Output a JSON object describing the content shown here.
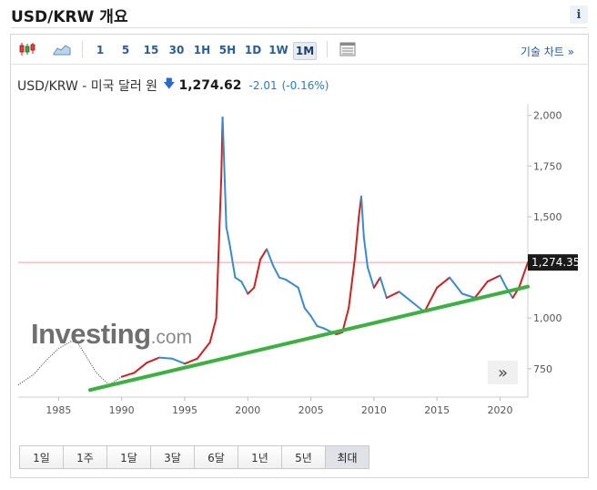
{
  "header": {
    "title": "USD/KRW 개요",
    "info_icon": "i"
  },
  "toolbar": {
    "timeframes": [
      "1",
      "5",
      "15",
      "30",
      "1H",
      "5H",
      "1D",
      "1W",
      "1M"
    ],
    "active_timeframe": "1M",
    "tech_chart_label": "기술 차트 »"
  },
  "quote": {
    "name": "USD/KRW - 미국 달러 원",
    "price": "1,274.62",
    "change": "-2.01",
    "change_pct": "(-0.16%)",
    "direction": "down"
  },
  "watermark": {
    "main": "Investing",
    "suffix": ".com"
  },
  "scroll_label": "»",
  "range_buttons": [
    "1일",
    "1주",
    "1달",
    "3달",
    "6달",
    "1년",
    "5년",
    "최대"
  ],
  "active_range": "최대",
  "colors": {
    "up": "#d02020",
    "down": "#3a8ad0",
    "trend": "#3cb040",
    "current_line": "#f0a0a0",
    "price_tag": "#1a1a1a"
  },
  "chart_data": {
    "type": "line",
    "title": "",
    "x_ticks": [
      1985,
      1990,
      1995,
      2000,
      2005,
      2010,
      2015,
      2020
    ],
    "y_ticks": [
      "2,000",
      "1,750",
      "1,500",
      "1,000",
      "750"
    ],
    "y_tick_values": [
      2000,
      1750,
      1500,
      1000,
      750
    ],
    "ylim": [
      610,
      2030
    ],
    "xlim": [
      1981.8,
      2022.2
    ],
    "current_value_label": "1,274.35",
    "current_value": 1274.35,
    "series": [
      {
        "style": "dotted",
        "x": [
          1981.8,
          1983,
          1984,
          1985,
          1986,
          1986.5,
          1987,
          1988,
          1989,
          1990
        ],
        "y": [
          670,
          720,
          790,
          850,
          885,
          880,
          830,
          730,
          670,
          710
        ]
      },
      {
        "style": "price",
        "x": [
          1990,
          1991,
          1992,
          1993,
          1994,
          1995,
          1996,
          1997,
          1997.5,
          1997.9,
          1998.0,
          1998.3,
          1998.6,
          1999,
          1999.5,
          2000,
          2000.5,
          2001,
          2001.5,
          2002,
          2002.5,
          2003,
          2004,
          2004.5,
          2005,
          2005.5,
          2006,
          2007,
          2007.5,
          2008,
          2008.5,
          2008.8,
          2009.0,
          2009.2,
          2009.5,
          2010,
          2010.5,
          2011,
          2012,
          2013,
          2014,
          2015,
          2016,
          2017,
          2018,
          2019,
          2020,
          2020.5,
          2021,
          2021.5,
          2022.2
        ],
        "y": [
          710,
          730,
          780,
          805,
          800,
          775,
          800,
          880,
          1000,
          1700,
          1990,
          1450,
          1350,
          1200,
          1180,
          1120,
          1150,
          1290,
          1340,
          1260,
          1200,
          1190,
          1150,
          1050,
          1010,
          960,
          950,
          920,
          930,
          1050,
          1300,
          1500,
          1600,
          1400,
          1250,
          1150,
          1200,
          1100,
          1130,
          1080,
          1030,
          1150,
          1200,
          1120,
          1100,
          1180,
          1210,
          1150,
          1100,
          1150,
          1274
        ]
      },
      {
        "style": "trend",
        "x": [
          1987.5,
          2022.2
        ],
        "y": [
          645,
          1155
        ]
      }
    ]
  }
}
